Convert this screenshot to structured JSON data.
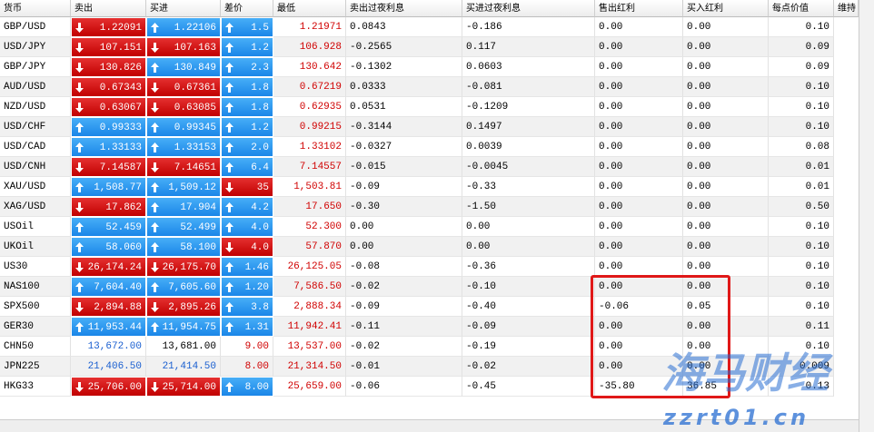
{
  "table": {
    "columns": [
      "货币",
      "卖出",
      "买进",
      "差价",
      "最低",
      "卖出过夜利息",
      "买进过夜利息",
      "售出红利",
      "买入红利",
      "每点价值",
      "维持"
    ],
    "rows": [
      [
        "GBP/USD",
        {
          "t": "1.22091",
          "s": "down"
        },
        {
          "t": "1.22106",
          "s": "up"
        },
        {
          "t": "1.5",
          "s": "up"
        },
        "1.21971",
        "0.0843",
        "-0.186",
        "0.00",
        "0.00",
        "0.10"
      ],
      [
        "USD/JPY",
        {
          "t": "107.151",
          "s": "down"
        },
        {
          "t": "107.163",
          "s": "down"
        },
        {
          "t": "1.2",
          "s": "up"
        },
        "106.928",
        "-0.2565",
        "0.117",
        "0.00",
        "0.00",
        "0.09"
      ],
      [
        "GBP/JPY",
        {
          "t": "130.826",
          "s": "down"
        },
        {
          "t": "130.849",
          "s": "up"
        },
        {
          "t": "2.3",
          "s": "up"
        },
        "130.642",
        "-0.1302",
        "0.0603",
        "0.00",
        "0.00",
        "0.09"
      ],
      [
        "AUD/USD",
        {
          "t": "0.67343",
          "s": "down"
        },
        {
          "t": "0.67361",
          "s": "down"
        },
        {
          "t": "1.8",
          "s": "up"
        },
        "0.67219",
        "0.0333",
        "-0.081",
        "0.00",
        "0.00",
        "0.10"
      ],
      [
        "NZD/USD",
        {
          "t": "0.63067",
          "s": "down"
        },
        {
          "t": "0.63085",
          "s": "down"
        },
        {
          "t": "1.8",
          "s": "up"
        },
        "0.62935",
        "0.0531",
        "-0.1209",
        "0.00",
        "0.00",
        "0.10"
      ],
      [
        "USD/CHF",
        {
          "t": "0.99333",
          "s": "up"
        },
        {
          "t": "0.99345",
          "s": "up"
        },
        {
          "t": "1.2",
          "s": "up"
        },
        "0.99215",
        "-0.3144",
        "0.1497",
        "0.00",
        "0.00",
        "0.10"
      ],
      [
        "USD/CAD",
        {
          "t": "1.33133",
          "s": "up"
        },
        {
          "t": "1.33153",
          "s": "up"
        },
        {
          "t": "2.0",
          "s": "up"
        },
        "1.33102",
        "-0.0327",
        "0.0039",
        "0.00",
        "0.00",
        "0.08"
      ],
      [
        "USD/CNH",
        {
          "t": "7.14587",
          "s": "down"
        },
        {
          "t": "7.14651",
          "s": "down"
        },
        {
          "t": "6.4",
          "s": "up"
        },
        "7.14557",
        "-0.015",
        "-0.0045",
        "0.00",
        "0.00",
        "0.01"
      ],
      [
        "XAU/USD",
        {
          "t": "1,508.77",
          "s": "up"
        },
        {
          "t": "1,509.12",
          "s": "up"
        },
        {
          "t": "35",
          "s": "down"
        },
        "1,503.81",
        "-0.09",
        "-0.33",
        "0.00",
        "0.00",
        "0.01"
      ],
      [
        "XAG/USD",
        {
          "t": "17.862",
          "s": "down"
        },
        {
          "t": "17.904",
          "s": "up"
        },
        {
          "t": "4.2",
          "s": "up"
        },
        "17.650",
        "-0.30",
        "-1.50",
        "0.00",
        "0.00",
        "0.50"
      ],
      [
        "USOil",
        {
          "t": "52.459",
          "s": "up"
        },
        {
          "t": "52.499",
          "s": "up"
        },
        {
          "t": "4.0",
          "s": "up"
        },
        "52.300",
        "0.00",
        "0.00",
        "0.00",
        "0.00",
        "0.10"
      ],
      [
        "UKOil",
        {
          "t": "58.060",
          "s": "up"
        },
        {
          "t": "58.100",
          "s": "up"
        },
        {
          "t": "4.0",
          "s": "down"
        },
        "57.870",
        "0.00",
        "0.00",
        "0.00",
        "0.00",
        "0.10"
      ],
      [
        "US30",
        {
          "t": "26,174.24",
          "s": "down"
        },
        {
          "t": "26,175.70",
          "s": "down"
        },
        {
          "t": "1.46",
          "s": "up"
        },
        "26,125.05",
        "-0.08",
        "-0.36",
        "0.00",
        "0.00",
        "0.10"
      ],
      [
        "NAS100",
        {
          "t": "7,604.40",
          "s": "up"
        },
        {
          "t": "7,605.60",
          "s": "up"
        },
        {
          "t": "1.20",
          "s": "up"
        },
        "7,586.50",
        "-0.02",
        "-0.10",
        "0.00",
        "0.00",
        "0.10"
      ],
      [
        "SPX500",
        {
          "t": "2,894.88",
          "s": "down"
        },
        {
          "t": "2,895.26",
          "s": "down"
        },
        {
          "t": "3.8",
          "s": "up"
        },
        "2,888.34",
        "-0.09",
        "-0.40",
        "-0.06",
        "0.05",
        "0.10"
      ],
      [
        "GER30",
        {
          "t": "11,953.44",
          "s": "up"
        },
        {
          "t": "11,954.75",
          "s": "up"
        },
        {
          "t": "1.31",
          "s": "up"
        },
        "11,942.41",
        "-0.11",
        "-0.09",
        "0.00",
        "0.00",
        "0.11"
      ],
      [
        "CHN50",
        {
          "t": "13,672.00",
          "s": "blue-text"
        },
        {
          "t": "13,681.00",
          "s": "plain"
        },
        {
          "t": "9.00",
          "s": "red-text"
        },
        "13,537.00",
        "-0.02",
        "-0.19",
        "0.00",
        "0.00",
        "0.10"
      ],
      [
        "JPN225",
        {
          "t": "21,406.50",
          "s": "blue-text"
        },
        {
          "t": "21,414.50",
          "s": "blue-text"
        },
        {
          "t": "8.00",
          "s": "red-text"
        },
        "21,314.50",
        "-0.01",
        "-0.02",
        "0.00",
        "0.00",
        "0.009"
      ],
      [
        "HKG33",
        {
          "t": "25,706.00",
          "s": "down"
        },
        {
          "t": "25,714.00",
          "s": "down"
        },
        {
          "t": "8.00",
          "s": "up"
        },
        "25,659.00",
        "-0.06",
        "-0.45",
        "-35.80",
        "36.85",
        "0.13"
      ]
    ]
  },
  "watermark": {
    "brand": "海马财经",
    "url": "zzrt01.cn"
  }
}
